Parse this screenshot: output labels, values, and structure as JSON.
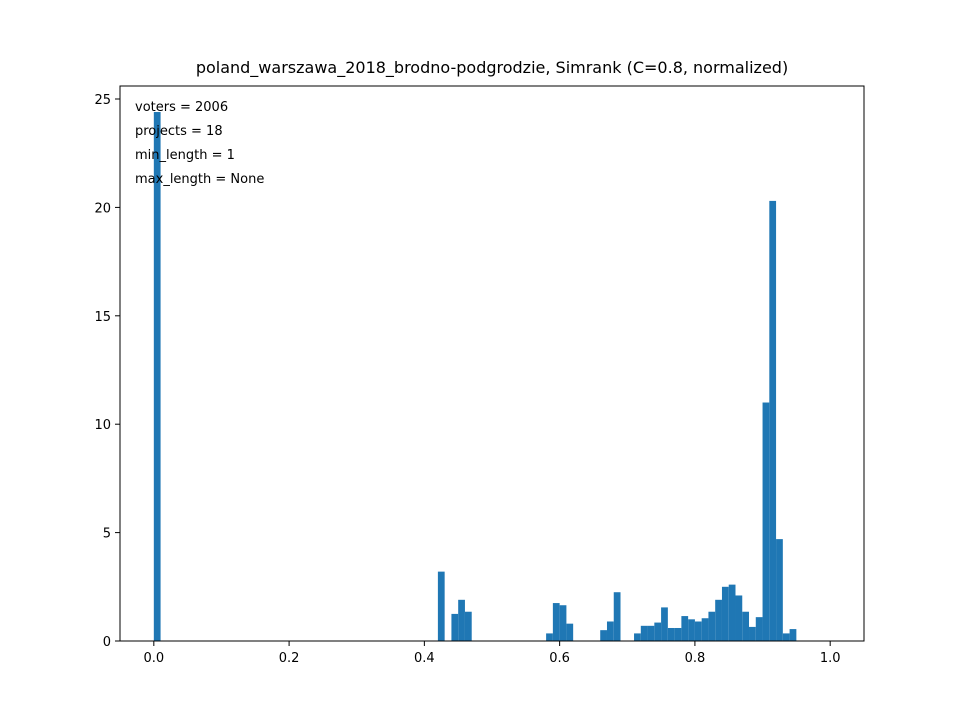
{
  "chart_data": {
    "type": "bar",
    "title": "poland_warszawa_2018_brodno-podgrodzie, Simrank (C=0.8, normalized)",
    "xlabel": "",
    "ylabel": "",
    "xlim": [
      -0.05,
      1.05
    ],
    "ylim": [
      0,
      25.6
    ],
    "xticks": [
      "0.0",
      "0.2",
      "0.4",
      "0.6",
      "0.8",
      "1.0"
    ],
    "yticks": [
      "0",
      "5",
      "10",
      "15",
      "20",
      "25"
    ],
    "grid": false,
    "color": "#1f77b4",
    "bin_width": 0.01,
    "annotation": [
      "voters = 2006",
      "projects = 18",
      "min_length = 1",
      "max_length = None"
    ],
    "bins": [
      {
        "x": 0.0,
        "y": 24.4
      },
      {
        "x": 0.42,
        "y": 3.2
      },
      {
        "x": 0.44,
        "y": 1.25
      },
      {
        "x": 0.45,
        "y": 1.9
      },
      {
        "x": 0.46,
        "y": 1.35
      },
      {
        "x": 0.58,
        "y": 0.35
      },
      {
        "x": 0.59,
        "y": 1.75
      },
      {
        "x": 0.6,
        "y": 1.65
      },
      {
        "x": 0.61,
        "y": 0.8
      },
      {
        "x": 0.66,
        "y": 0.5
      },
      {
        "x": 0.67,
        "y": 0.9
      },
      {
        "x": 0.68,
        "y": 2.25
      },
      {
        "x": 0.71,
        "y": 0.35
      },
      {
        "x": 0.72,
        "y": 0.7
      },
      {
        "x": 0.73,
        "y": 0.7
      },
      {
        "x": 0.74,
        "y": 0.85
      },
      {
        "x": 0.75,
        "y": 1.55
      },
      {
        "x": 0.76,
        "y": 0.6
      },
      {
        "x": 0.77,
        "y": 0.6
      },
      {
        "x": 0.78,
        "y": 1.15
      },
      {
        "x": 0.79,
        "y": 1.0
      },
      {
        "x": 0.8,
        "y": 0.9
      },
      {
        "x": 0.81,
        "y": 1.05
      },
      {
        "x": 0.82,
        "y": 1.35
      },
      {
        "x": 0.83,
        "y": 1.9
      },
      {
        "x": 0.84,
        "y": 2.5
      },
      {
        "x": 0.85,
        "y": 2.6
      },
      {
        "x": 0.86,
        "y": 2.1
      },
      {
        "x": 0.87,
        "y": 1.35
      },
      {
        "x": 0.88,
        "y": 0.65
      },
      {
        "x": 0.89,
        "y": 1.1
      },
      {
        "x": 0.9,
        "y": 11.0
      },
      {
        "x": 0.91,
        "y": 20.3
      },
      {
        "x": 0.92,
        "y": 4.7
      },
      {
        "x": 0.93,
        "y": 0.35
      },
      {
        "x": 0.94,
        "y": 0.55
      }
    ]
  }
}
